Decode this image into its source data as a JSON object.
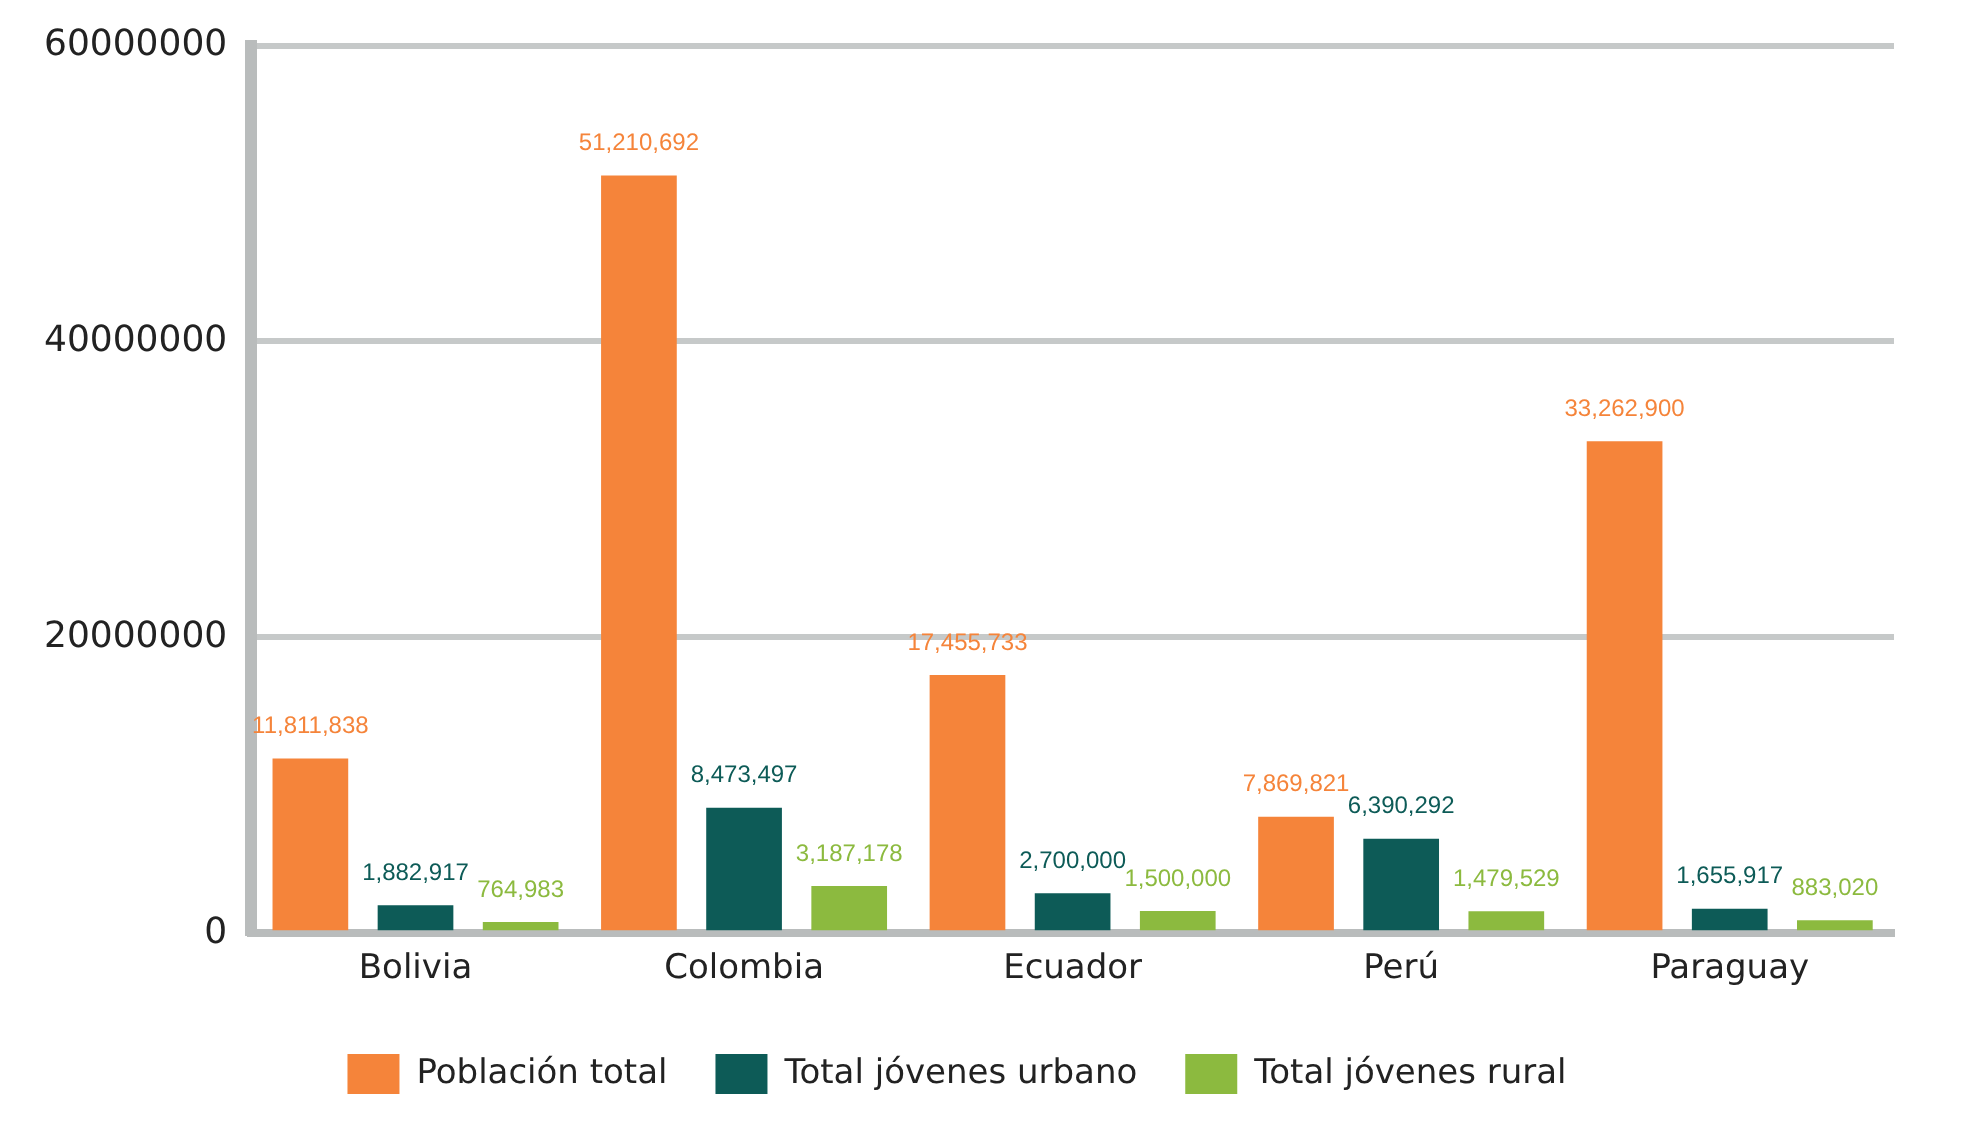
{
  "chart_data": {
    "type": "bar",
    "categories": [
      "Bolivia",
      "Colombia",
      "Ecuador",
      "Perú",
      "Paraguay"
    ],
    "series": [
      {
        "name": "Población total",
        "color": "#f5843a",
        "values": [
          11811838,
          51210692,
          17455733,
          7869821,
          33262900
        ],
        "value_labels": [
          "11,811,838",
          "51,210,692",
          "17,455,733",
          "7,869,821",
          "33,262,900"
        ]
      },
      {
        "name": "Total jóvenes urbano",
        "color": "#0d5b57",
        "values": [
          1882917,
          8473497,
          2700000,
          6390292,
          1655917
        ],
        "value_labels": [
          "1,882,917",
          "8,473,497",
          "2,700,000",
          "6,390,292",
          "1,655,917"
        ]
      },
      {
        "name": "Total jóvenes rural",
        "color": "#8cba3f",
        "values": [
          764983,
          3187178,
          1500000,
          1479529,
          883020
        ],
        "value_labels": [
          "764,983",
          "3,187,178",
          "1,500,000",
          "1,479,529",
          "883,020"
        ]
      }
    ],
    "ylim": [
      0,
      60000000
    ],
    "yticks": [
      0,
      20000000,
      40000000,
      60000000
    ],
    "grid": "y",
    "legend": "bottom"
  }
}
